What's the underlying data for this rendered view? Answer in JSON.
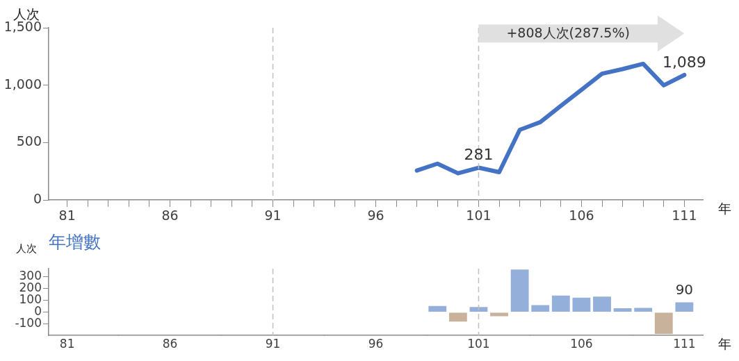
{
  "chart_data": [
    {
      "type": "line",
      "ylabel": "人次",
      "xlabel": "年",
      "marker": "none",
      "line_style": "solid",
      "xlim": [
        80.1,
        111.9
      ],
      "ylim": [
        0,
        1500
      ],
      "xticks": [
        81,
        {
          "value": 82,
          "label": null
        },
        {
          "value": 83,
          "label": null
        },
        {
          "value": 84,
          "label": null
        },
        {
          "value": 85,
          "label": null
        },
        86,
        {
          "value": 87,
          "label": null
        },
        {
          "value": 88,
          "label": null
        },
        {
          "value": 89,
          "label": null
        },
        {
          "value": 90,
          "label": null
        },
        91,
        {
          "value": 92,
          "label": null
        },
        {
          "value": 93,
          "label": null
        },
        {
          "value": 94,
          "label": null
        },
        {
          "value": 95,
          "label": null
        },
        96,
        {
          "value": 97,
          "label": null
        },
        {
          "value": 98,
          "label": null
        },
        {
          "value": 99,
          "label": null
        },
        {
          "value": 100,
          "label": null
        },
        101,
        {
          "value": 102,
          "label": null
        },
        {
          "value": 103,
          "label": null
        },
        {
          "value": 104,
          "label": null
        },
        {
          "value": 105,
          "label": null
        },
        106,
        {
          "value": 107,
          "label": null
        },
        {
          "value": 108,
          "label": null
        },
        {
          "value": 109,
          "label": null
        },
        {
          "value": 110,
          "label": null
        },
        111
      ],
      "yticks": [
        0,
        500,
        {
          "value": 1000,
          "label": "1,000"
        },
        {
          "value": 1500,
          "label": "1,500"
        }
      ],
      "series": [
        {
          "color": "#4472c4",
          "x": [
            98,
            99,
            100,
            101,
            102,
            103,
            104,
            105,
            106,
            107,
            108,
            109,
            110,
            111
          ],
          "values": [
            256,
            316,
            232,
            281,
            242,
            611,
            678,
            820,
            960,
            1100,
            1140,
            1186,
            999,
            1089
          ],
          "value_labels": [
            null,
            null,
            null,
            "281",
            null,
            null,
            null,
            null,
            null,
            null,
            null,
            null,
            null,
            "1,089"
          ]
        }
      ],
      "ref_lines": [
        {
          "axis": "x",
          "value": 91,
          "color": "#bfbfbf",
          "line_style": "dashed"
        },
        {
          "axis": "x",
          "value": 101,
          "color": "#bfbfbf",
          "line_style": "dashed"
        }
      ],
      "annotations": [
        {
          "text": "+808人次(287.5%)",
          "x": 101,
          "y": 1450
        }
      ]
    },
    {
      "type": "bar",
      "title": "年增數",
      "ylabel": "人次",
      "xlabel": "年",
      "xlim": [
        80.1,
        111.9
      ],
      "ylim": [
        -195,
        370
      ],
      "xticks": [
        81,
        86,
        91,
        96,
        101,
        106,
        111
      ],
      "yticks": [
        -100,
        0,
        100,
        200,
        300
      ],
      "series": [
        {
          "x": [
            99,
            100,
            101,
            102,
            103,
            104,
            105,
            106,
            107,
            108,
            109,
            110,
            111
          ],
          "values": [
            60,
            -84,
            50,
            -39,
            369,
            67,
            148,
            130,
            139,
            40,
            44,
            -189,
            90
          ],
          "colors": [
            "#94b0da",
            "#c9b29c",
            "#94b0da",
            "#c9b29c",
            "#94b0da",
            "#94b0da",
            "#94b0da",
            "#94b0da",
            "#94b0da",
            "#94b0da",
            "#94b0da",
            "#c9b29c",
            "#94b0da"
          ],
          "value_labels": [
            null,
            null,
            null,
            null,
            null,
            null,
            null,
            null,
            null,
            null,
            null,
            null,
            "90"
          ]
        }
      ],
      "ref_lines": [
        {
          "axis": "x",
          "value": 91,
          "color": "#bfbfbf",
          "line_style": "dashed"
        },
        {
          "axis": "x",
          "value": 101,
          "color": "#bfbfbf",
          "line_style": "dashed"
        }
      ]
    }
  ]
}
